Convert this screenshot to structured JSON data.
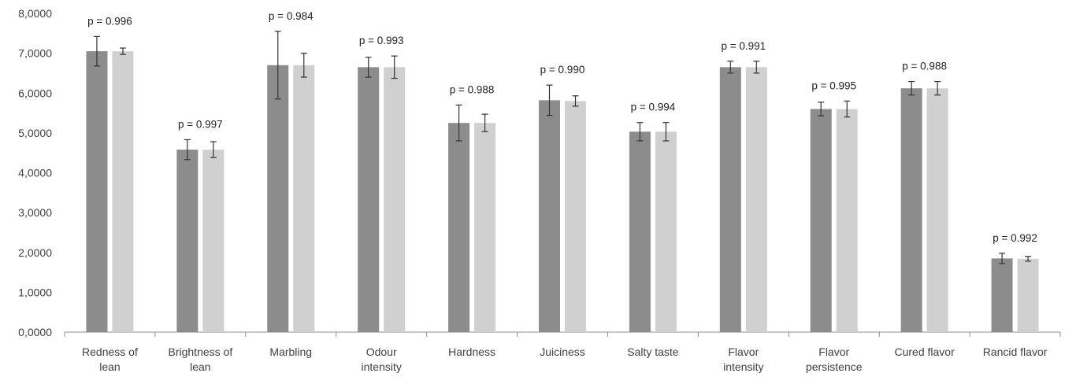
{
  "chart_data": {
    "type": "bar",
    "categories": [
      [
        "Redness of",
        "lean"
      ],
      [
        "Brightness of",
        "lean"
      ],
      [
        "Marbling"
      ],
      [
        "Odour",
        "intensity"
      ],
      [
        "Hardness"
      ],
      [
        "Juiciness"
      ],
      [
        "Salty taste"
      ],
      [
        "Flavor",
        "intensity"
      ],
      [
        "Flavor",
        "persistence"
      ],
      [
        "Cured flavor"
      ],
      [
        "Rancid flavor"
      ]
    ],
    "series": [
      {
        "color": "#8c8c8c",
        "values": [
          7.05,
          4.58,
          6.7,
          6.65,
          5.25,
          5.82,
          5.03,
          6.65,
          5.6,
          6.12,
          1.85
        ],
        "errors": [
          0.37,
          0.25,
          0.85,
          0.25,
          0.45,
          0.38,
          0.23,
          0.15,
          0.17,
          0.17,
          0.13
        ]
      },
      {
        "color": "#d0d0d0",
        "values": [
          7.05,
          4.58,
          6.7,
          6.65,
          5.25,
          5.8,
          5.03,
          6.65,
          5.6,
          6.12,
          1.84
        ],
        "errors": [
          0.08,
          0.2,
          0.3,
          0.28,
          0.22,
          0.13,
          0.23,
          0.15,
          0.2,
          0.17,
          0.06
        ]
      }
    ],
    "annotations": [
      "p = 0.996",
      "p = 0.997",
      "p = 0.984",
      "p = 0.993",
      "p = 0.988",
      "p = 0.990",
      "p = 0.994",
      "p = 0.991",
      "p = 0.995",
      "p = 0.988",
      "p = 0.992"
    ],
    "y_ticks": [
      "0,0000",
      "1,0000",
      "2,0000",
      "3,0000",
      "4,0000",
      "5,0000",
      "6,0000",
      "7,0000",
      "8,0000"
    ],
    "ylim": [
      0,
      8
    ],
    "grid": false,
    "legend": "none",
    "xlabel": "",
    "ylabel": "",
    "title": ""
  }
}
